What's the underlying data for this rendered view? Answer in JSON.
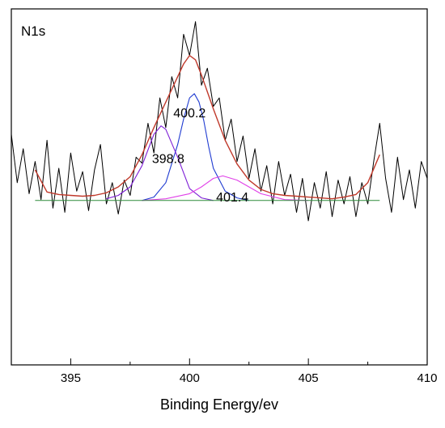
{
  "chart_data": {
    "type": "line",
    "title": "N1s",
    "xlabel": "Binding Energy/ev",
    "ylabel": "",
    "xlim": [
      392.5,
      410
    ],
    "ylim": [
      -2.1,
      2.1
    ],
    "xticks": [
      395,
      400,
      405,
      410
    ],
    "grid": false,
    "legend": "none",
    "annotations": [
      {
        "text": "400.2",
        "x": 400.0,
        "y": 0.82
      },
      {
        "text": "398.8",
        "x": 399.1,
        "y": 0.28
      },
      {
        "text": "401.4",
        "x": 401.8,
        "y": -0.17
      }
    ],
    "series": [
      {
        "role": "raw",
        "color": "#000000",
        "x": [
          392.5,
          392.75,
          393.0,
          393.25,
          393.5,
          393.75,
          394.0,
          394.25,
          394.5,
          394.75,
          395.0,
          395.25,
          395.5,
          395.75,
          396.0,
          396.25,
          396.5,
          396.75,
          397.0,
          397.25,
          397.5,
          397.75,
          398.0,
          398.25,
          398.5,
          398.75,
          399.0,
          399.25,
          399.5,
          399.75,
          400.0,
          400.25,
          400.5,
          400.75,
          401.0,
          401.25,
          401.5,
          401.75,
          402.0,
          402.25,
          402.5,
          402.75,
          403.0,
          403.25,
          403.5,
          403.75,
          404.0,
          404.25,
          404.5,
          404.75,
          405.0,
          405.25,
          405.5,
          405.75,
          406.0,
          406.25,
          406.5,
          406.75,
          407.0,
          407.25,
          407.5,
          407.75,
          408.0,
          408.25,
          408.5,
          408.75,
          409.0,
          409.25,
          409.5,
          409.75,
          410.0
        ],
        "y": [
          0.62,
          0.05,
          0.45,
          -0.08,
          0.3,
          -0.15,
          0.55,
          -0.25,
          0.22,
          -0.3,
          0.4,
          -0.05,
          0.18,
          -0.28,
          0.2,
          0.5,
          -0.2,
          0.05,
          -0.32,
          0.08,
          -0.1,
          0.35,
          0.28,
          0.75,
          0.4,
          1.05,
          0.7,
          1.3,
          1.05,
          1.8,
          1.55,
          1.95,
          1.2,
          1.4,
          0.95,
          1.05,
          0.55,
          0.8,
          0.3,
          0.6,
          0.1,
          0.45,
          -0.05,
          0.25,
          -0.2,
          0.3,
          -0.1,
          0.15,
          -0.3,
          0.1,
          -0.4,
          0.05,
          -0.25,
          0.18,
          -0.35,
          0.08,
          -0.2,
          0.12,
          -0.35,
          0.05,
          -0.2,
          0.3,
          0.75,
          0.1,
          -0.3,
          0.35,
          -0.15,
          0.2,
          -0.25,
          0.3,
          0.1
        ]
      },
      {
        "role": "envelope",
        "color": "#c0392b",
        "x": [
          393.5,
          394.0,
          394.5,
          395.0,
          395.5,
          396.0,
          396.5,
          397.0,
          397.5,
          398.0,
          398.5,
          399.0,
          399.5,
          399.75,
          400.0,
          400.25,
          400.5,
          401.0,
          401.5,
          402.0,
          402.5,
          403.0,
          403.5,
          404.0,
          404.5,
          405.0,
          405.5,
          406.0,
          406.5,
          407.0,
          407.5,
          408.0
        ],
        "y": [
          0.2,
          -0.06,
          -0.09,
          -0.1,
          -0.11,
          -0.1,
          -0.07,
          0.0,
          0.12,
          0.38,
          0.7,
          1.0,
          1.3,
          1.45,
          1.55,
          1.5,
          1.32,
          0.92,
          0.55,
          0.27,
          0.08,
          -0.03,
          -0.08,
          -0.1,
          -0.11,
          -0.12,
          -0.13,
          -0.14,
          -0.12,
          -0.09,
          0.05,
          0.38
        ]
      },
      {
        "role": "peak",
        "name": "400.2",
        "color": "#1f3bd1",
        "x": [
          398.0,
          398.5,
          399.0,
          399.5,
          399.75,
          400.0,
          400.2,
          400.4,
          400.6,
          400.8,
          401.0,
          401.5,
          402.0,
          402.5
        ],
        "y": [
          -0.16,
          -0.12,
          0.05,
          0.5,
          0.8,
          1.05,
          1.1,
          1.0,
          0.78,
          0.48,
          0.22,
          -0.05,
          -0.13,
          -0.16
        ]
      },
      {
        "role": "peak",
        "name": "398.8",
        "color": "#7d1ed6",
        "x": [
          396.5,
          397.0,
          397.5,
          398.0,
          398.5,
          398.8,
          399.0,
          399.5,
          400.0,
          400.5,
          401.0
        ],
        "y": [
          -0.14,
          -0.1,
          0.0,
          0.25,
          0.62,
          0.72,
          0.68,
          0.35,
          -0.02,
          -0.13,
          -0.16
        ]
      },
      {
        "role": "peak",
        "name": "401.4",
        "color": "#e040e8",
        "x": [
          398.0,
          399.0,
          400.0,
          400.5,
          401.0,
          401.4,
          402.0,
          402.5,
          403.0,
          404.0,
          405.0
        ],
        "y": [
          -0.16,
          -0.14,
          -0.08,
          0.0,
          0.1,
          0.13,
          0.08,
          0.0,
          -0.08,
          -0.15,
          -0.16
        ]
      },
      {
        "role": "baseline",
        "color": "#2e8b3a",
        "x": [
          393.5,
          408.0
        ],
        "y": [
          -0.16,
          -0.16
        ]
      }
    ]
  }
}
